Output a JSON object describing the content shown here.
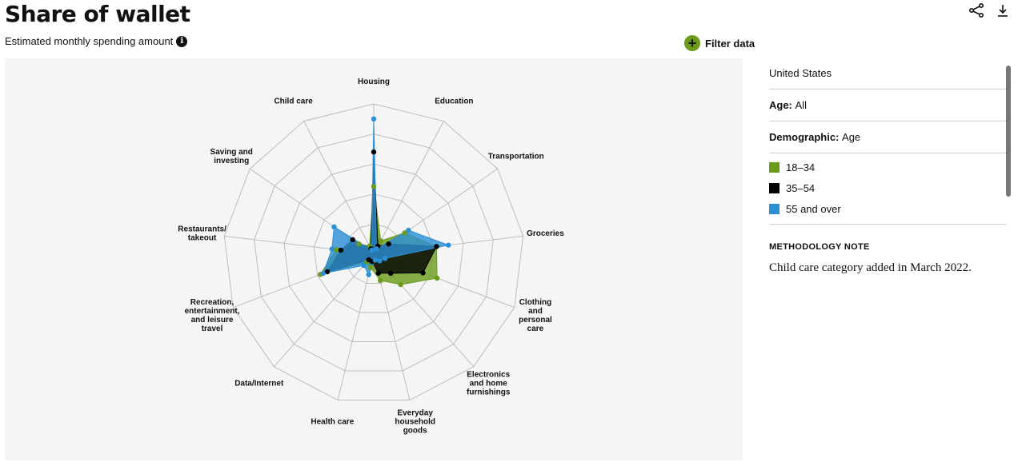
{
  "header": {
    "title": "Share of wallet",
    "subtitle": "Estimated monthly spending amount",
    "filter_label": "Filter data"
  },
  "icons": {
    "info": "info-icon",
    "filter": "plus-icon",
    "share": "share-icon",
    "download": "download-icon"
  },
  "panel": {
    "country": "United States",
    "age_label": "Age:",
    "age_value": "All",
    "demo_label": "Demographic:",
    "demo_value": "Age",
    "legend": [
      {
        "label": "18–34",
        "color": "#6a9b1a"
      },
      {
        "label": "35–54",
        "color": "#000000"
      },
      {
        "label": "55 and over",
        "color": "#2b8fd6"
      }
    ],
    "method_title": "METHODOLOGY NOTE",
    "method_text": "Child care category added in March 2022."
  },
  "chart_data": {
    "type": "radar",
    "scale_max": 1,
    "categories": [
      [
        "Housing"
      ],
      [
        "Education"
      ],
      [
        "Transportation"
      ],
      [
        "Groceries"
      ],
      [
        "Clothing",
        "and",
        "personal",
        "care"
      ],
      [
        "Electronics",
        "and home",
        "furnishings"
      ],
      [
        "Everyday",
        "household",
        "goods"
      ],
      [
        "Health care"
      ],
      [
        "Data/Internet"
      ],
      [
        "Recreation,",
        "entertainment,",
        "and leisure",
        "travel"
      ],
      [
        "Restaurants/",
        "takeout"
      ],
      [
        "Saving and",
        "investing"
      ],
      [
        "Child care"
      ]
    ],
    "series": [
      {
        "name": "18–34",
        "color": "#6a9b1a",
        "values": [
          0.45,
          0.1,
          0.25,
          0.42,
          0.45,
          0.27,
          0.18,
          0.09,
          0.07,
          0.38,
          0.25,
          0.12,
          0.06
        ]
      },
      {
        "name": "35–54",
        "color": "#000000",
        "values": [
          0.68,
          0.06,
          0.12,
          0.42,
          0.35,
          0.17,
          0.13,
          0.05,
          0.05,
          0.33,
          0.22,
          0.17,
          0.04
        ]
      },
      {
        "name": "55 and over",
        "color": "#2b8fd6",
        "values": [
          0.9,
          0.04,
          0.28,
          0.5,
          0.08,
          0.06,
          0.04,
          0.14,
          0.1,
          0.36,
          0.28,
          0.32,
          0.03
        ]
      }
    ]
  }
}
